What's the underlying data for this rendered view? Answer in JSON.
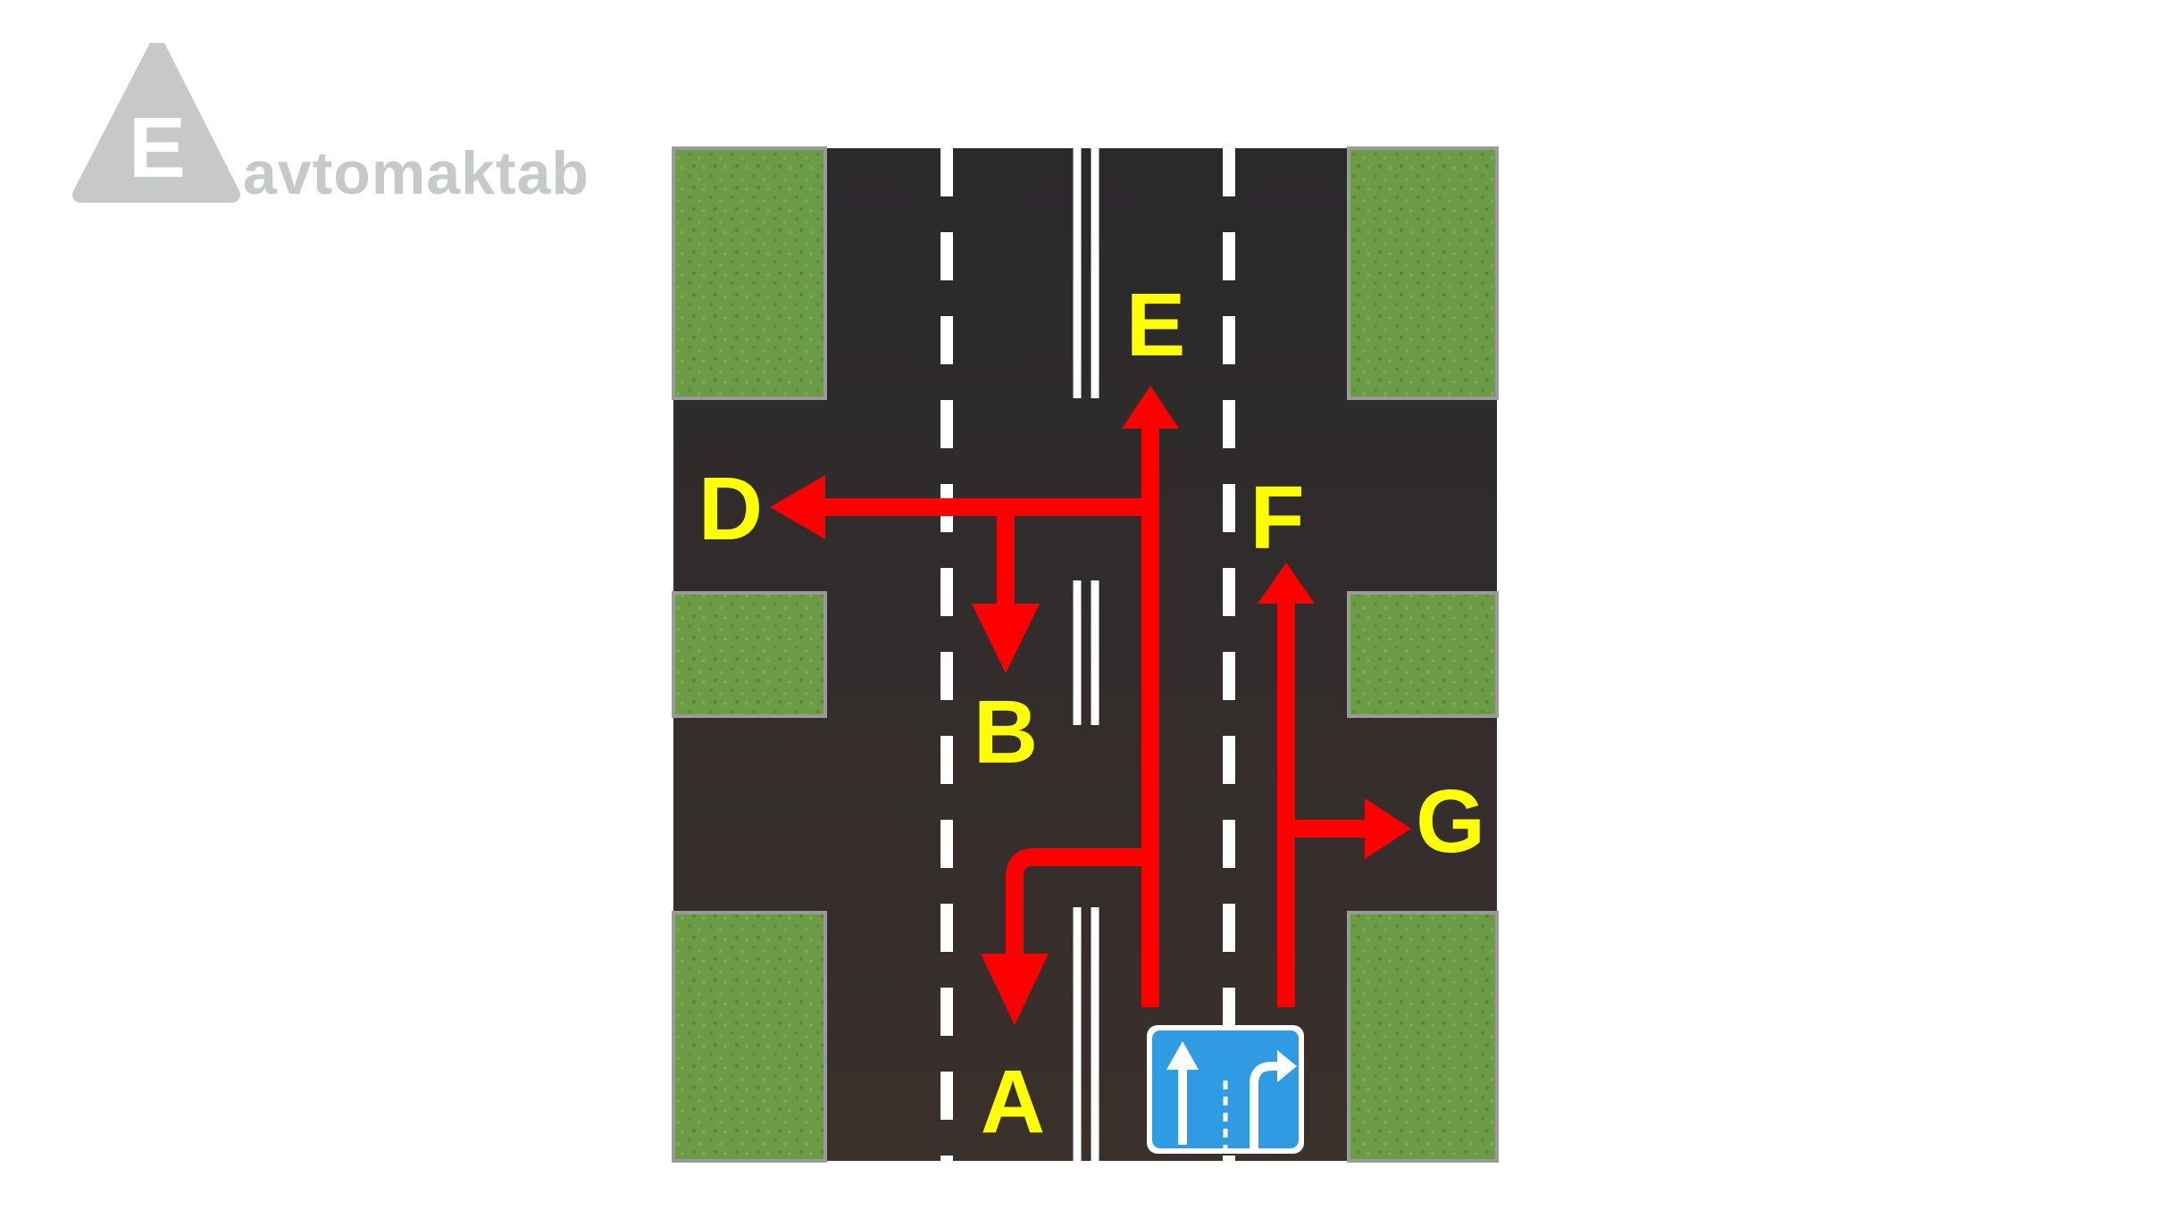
{
  "logo": {
    "letter": "E",
    "text": "avtomaktab",
    "color": "#c7c9c8"
  },
  "diagram": {
    "labels": {
      "A": "A",
      "B": "B",
      "D": "D",
      "E": "E",
      "F": "F",
      "G": "G"
    },
    "colors": {
      "road": "#2f2d2e",
      "grass": "#6b9c45",
      "curb": "#9a9a9a",
      "marking": "#ffffff",
      "arrow": "#ff0000",
      "label": "#ffff00",
      "sign": "#2e9be3"
    },
    "sign": {
      "name": "lane-direction-sign",
      "lanes": [
        "straight",
        "straight-or-right"
      ]
    }
  }
}
